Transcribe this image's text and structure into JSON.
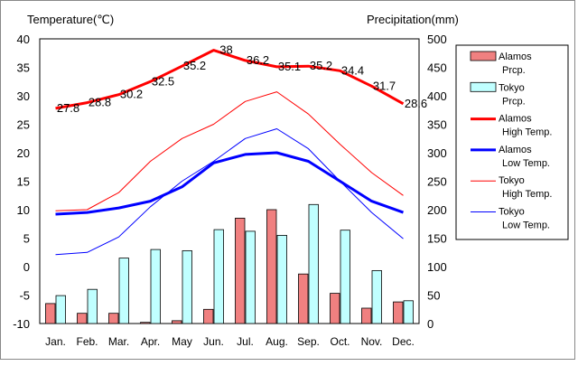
{
  "chart_data": {
    "type": "bar+line",
    "y_left_label": "Temperature(℃)",
    "y_right_label": "Precipitation(mm)",
    "y_left_lim": [
      -10,
      40
    ],
    "y_right_lim": [
      0,
      500
    ],
    "y_left_ticks": [
      "40",
      "35",
      "30",
      "25",
      "20",
      "15",
      "10",
      "5",
      "0",
      "-5",
      "-10"
    ],
    "y_right_ticks": [
      "500",
      "450",
      "400",
      "350",
      "300",
      "250",
      "200",
      "150",
      "100",
      "50",
      "0"
    ],
    "categories": [
      "Jan.",
      "Feb.",
      "Mar.",
      "Apr.",
      "May",
      "Jun.",
      "Jul.",
      "Aug.",
      "Sep.",
      "Oct.",
      "Nov.",
      "Dec."
    ],
    "grid": false,
    "legend_position": "right",
    "bar_series": [
      {
        "legend": [
          "Alamos",
          "Prcp."
        ],
        "color": "#f08080",
        "values": [
          35,
          18,
          18,
          2,
          5,
          25,
          185,
          200,
          87,
          53,
          27,
          38
        ]
      },
      {
        "legend": [
          "Tokyo",
          "Prcp."
        ],
        "color": "#c0ffff",
        "values": [
          49,
          60,
          115,
          130,
          128,
          165,
          162,
          155,
          209,
          164,
          93,
          40
        ]
      }
    ],
    "line_series": [
      {
        "legend": [
          "Alamos",
          "High Temp."
        ],
        "color": "#ff0000",
        "width": 3,
        "values": [
          27.8,
          28.8,
          30.2,
          32.5,
          35.2,
          38,
          36.2,
          35.1,
          35.2,
          34.4,
          31.7,
          28.6
        ],
        "labels": [
          "27.8",
          "28.8",
          "30.2",
          "32.5",
          "35.2",
          "38",
          "36.2",
          "35.1",
          "35.2",
          "34.4",
          "31.7",
          "28.6"
        ]
      },
      {
        "legend": [
          "Alamos",
          "Low Temp."
        ],
        "color": "#0000ff",
        "width": 3,
        "values": [
          9.2,
          9.5,
          10.3,
          11.5,
          14,
          18.2,
          19.7,
          20,
          18.5,
          15,
          11.5,
          9.5
        ]
      },
      {
        "legend": [
          "Tokyo",
          "High Temp."
        ],
        "color": "#ff0000",
        "width": 1,
        "values": [
          9.8,
          10,
          13,
          18.5,
          22.5,
          25,
          29,
          30.7,
          26.8,
          21.5,
          16.5,
          12.5
        ]
      },
      {
        "legend": [
          "Tokyo",
          "Low Temp."
        ],
        "color": "#0000ff",
        "width": 1,
        "values": [
          2.1,
          2.5,
          5.2,
          10.5,
          15,
          18.5,
          22.5,
          24.2,
          20.7,
          15,
          9.5,
          4.9
        ]
      }
    ]
  }
}
